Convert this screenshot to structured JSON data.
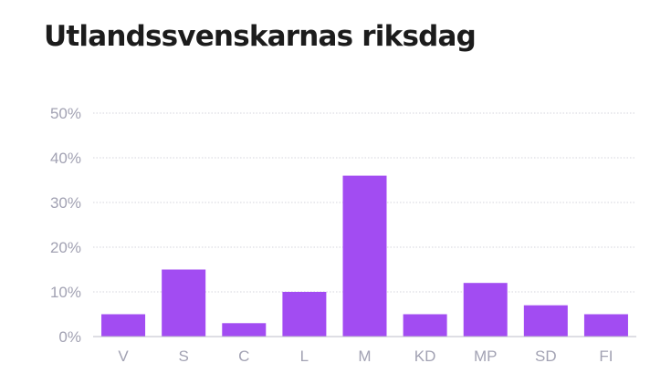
{
  "header": {
    "title": "Utlandssvenskarnas riksdag"
  },
  "colors": {
    "bar": "#a24cf2",
    "tick_text": "#a2a2b3",
    "grid": "#d4d4dc"
  },
  "chart_data": {
    "type": "bar",
    "title": "Utlandssvenskarnas riksdag",
    "xlabel": "",
    "ylabel": "",
    "categories": [
      "V",
      "S",
      "C",
      "L",
      "M",
      "KD",
      "MP",
      "SD",
      "FI"
    ],
    "values": [
      5,
      15,
      3,
      10,
      36,
      5,
      12,
      7,
      5
    ],
    "ylim": [
      0,
      50
    ],
    "y_ticks": [
      0,
      10,
      20,
      30,
      40,
      50
    ],
    "y_tick_labels": [
      "0%",
      "10%",
      "20%",
      "30%",
      "40%",
      "50%"
    ],
    "grid": true,
    "legend": "none"
  }
}
